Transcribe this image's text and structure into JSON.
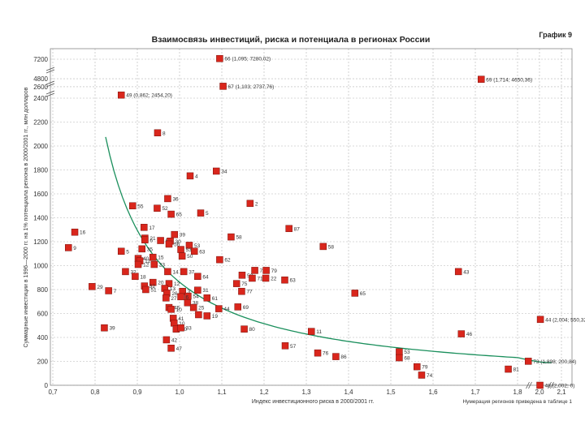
{
  "chart_data": {
    "type": "scatter",
    "title": "Взаимосвязь инвестиций, риска и потенциала в регионах России",
    "graph_label": "График 9",
    "xlabel": "Индекс инвестиционного риска в 2000/2001 гг.",
    "ylabel": "Суммарные инвестиции в 1996—2000 гг. на 1% потенциала региона в 2000/2001 гг., млн долларов",
    "note": "Нумерация регионов приведена в таблице 1",
    "x_ticks": [
      "0,7",
      "0,8",
      "0,9",
      "1,0",
      "1,1",
      "1,2",
      "1,3",
      "1,4",
      "1,5",
      "1,6",
      "1,7",
      "1,8",
      "2,0",
      "2,1"
    ],
    "y_ticks": [
      0,
      200,
      400,
      600,
      800,
      1000,
      1200,
      1400,
      1600,
      1800,
      2000,
      2200,
      2400,
      2600,
      4800,
      7200
    ],
    "grid": true,
    "trend": "hyperbolic",
    "points": [
      {
        "label": "66 (1,095; 7280,02)",
        "x": 1.095,
        "y": 7280.02
      },
      {
        "label": "69 (1,714; 4650,36)",
        "x": 1.714,
        "y": 4650.36
      },
      {
        "label": "67 (1,103; 2737,76)",
        "x": 1.103,
        "y": 2737.76
      },
      {
        "label": "49 (0,862; 2454,20)",
        "x": 0.862,
        "y": 2454.2
      },
      {
        "label": "8",
        "x": 0.948,
        "y": 2110
      },
      {
        "label": "34",
        "x": 1.087,
        "y": 1790
      },
      {
        "label": "4",
        "x": 1.025,
        "y": 1750
      },
      {
        "label": "36",
        "x": 0.972,
        "y": 1560
      },
      {
        "label": "2",
        "x": 1.167,
        "y": 1520
      },
      {
        "label": "55",
        "x": 0.889,
        "y": 1500
      },
      {
        "label": "52",
        "x": 0.947,
        "y": 1480
      },
      {
        "label": "65",
        "x": 0.98,
        "y": 1430
      },
      {
        "label": "5",
        "x": 1.05,
        "y": 1440
      },
      {
        "label": "16",
        "x": 0.752,
        "y": 1280
      },
      {
        "label": "17",
        "x": 0.916,
        "y": 1320
      },
      {
        "label": "87",
        "x": 1.259,
        "y": 1310
      },
      {
        "label": "9",
        "x": 0.737,
        "y": 1150
      },
      {
        "label": "21",
        "x": 0.918,
        "y": 1230
      },
      {
        "label": "39",
        "x": 0.988,
        "y": 1260
      },
      {
        "label": "58",
        "x": 1.122,
        "y": 1240
      },
      {
        "label": "6",
        "x": 0.918,
        "y": 1215
      },
      {
        "label": "59",
        "x": 0.955,
        "y": 1210
      },
      {
        "label": "30",
        "x": 0.978,
        "y": 1205
      },
      {
        "label": "56",
        "x": 0.975,
        "y": 1180
      },
      {
        "label": "5",
        "x": 0.862,
        "y": 1120
      },
      {
        "label": "35",
        "x": 0.911,
        "y": 1140
      },
      {
        "label": "53",
        "x": 1.023,
        "y": 1170
      },
      {
        "label": "58",
        "x": 1.34,
        "y": 1160
      },
      {
        "label": "53",
        "x": 1.003,
        "y": 1135
      },
      {
        "label": "63",
        "x": 1.035,
        "y": 1120
      },
      {
        "label": "40",
        "x": 0.902,
        "y": 1060
      },
      {
        "label": "15",
        "x": 0.937,
        "y": 1070
      },
      {
        "label": "11",
        "x": 0.906,
        "y": 1040
      },
      {
        "label": "50",
        "x": 1.006,
        "y": 1080
      },
      {
        "label": "12",
        "x": 0.902,
        "y": 1010
      },
      {
        "label": "23",
        "x": 0.94,
        "y": 1010
      },
      {
        "label": "62",
        "x": 1.095,
        "y": 1050
      },
      {
        "label": "72",
        "x": 1.178,
        "y": 960
      },
      {
        "label": "32",
        "x": 0.872,
        "y": 950
      },
      {
        "label": "14",
        "x": 0.972,
        "y": 950
      },
      {
        "label": "37",
        "x": 1.01,
        "y": 950
      },
      {
        "label": "52",
        "x": 1.148,
        "y": 920
      },
      {
        "label": "79",
        "x": 1.205,
        "y": 960
      },
      {
        "label": "18",
        "x": 0.895,
        "y": 910
      },
      {
        "label": "64",
        "x": 1.043,
        "y": 910
      },
      {
        "label": "71",
        "x": 1.172,
        "y": 895
      },
      {
        "label": "22",
        "x": 1.204,
        "y": 895
      },
      {
        "label": "63",
        "x": 1.249,
        "y": 880
      },
      {
        "label": "43",
        "x": 1.66,
        "y": 950
      },
      {
        "label": "20",
        "x": 0.937,
        "y": 860
      },
      {
        "label": "12",
        "x": 0.975,
        "y": 850
      },
      {
        "label": "75",
        "x": 1.135,
        "y": 850
      },
      {
        "label": "29",
        "x": 0.793,
        "y": 825
      },
      {
        "label": "7",
        "x": 0.832,
        "y": 790
      },
      {
        "label": "32",
        "x": 0.917,
        "y": 830
      },
      {
        "label": "51",
        "x": 0.92,
        "y": 800
      },
      {
        "label": "13",
        "x": 0.965,
        "y": 810
      },
      {
        "label": "31",
        "x": 1.043,
        "y": 795
      },
      {
        "label": "77",
        "x": 1.147,
        "y": 785
      },
      {
        "label": "3",
        "x": 1.007,
        "y": 785
      },
      {
        "label": "54",
        "x": 1.02,
        "y": 745
      },
      {
        "label": "26",
        "x": 0.97,
        "y": 770
      },
      {
        "label": "27",
        "x": 0.968,
        "y": 730
      },
      {
        "label": "6",
        "x": 1.003,
        "y": 740
      },
      {
        "label": "61",
        "x": 1.065,
        "y": 730
      },
      {
        "label": "65",
        "x": 1.415,
        "y": 770
      },
      {
        "label": "38",
        "x": 1.019,
        "y": 690
      },
      {
        "label": "45",
        "x": 0.975,
        "y": 650
      },
      {
        "label": "25",
        "x": 1.033,
        "y": 650
      },
      {
        "label": "10",
        "x": 0.98,
        "y": 635
      },
      {
        "label": "44",
        "x": 1.093,
        "y": 640
      },
      {
        "label": "69",
        "x": 1.138,
        "y": 655
      },
      {
        "label": "28",
        "x": 1.045,
        "y": 590
      },
      {
        "label": "19",
        "x": 1.065,
        "y": 580
      },
      {
        "label": "41",
        "x": 0.985,
        "y": 560
      },
      {
        "label": "10",
        "x": 0.987,
        "y": 520
      },
      {
        "label": "44 (2,004; 550,32)",
        "x": 2.004,
        "y": 550.32
      },
      {
        "label": "39",
        "x": 0.822,
        "y": 480
      },
      {
        "label": "60",
        "x": 0.992,
        "y": 470
      },
      {
        "label": "33",
        "x": 1.003,
        "y": 480
      },
      {
        "label": "80",
        "x": 1.153,
        "y": 470
      },
      {
        "label": "46",
        "x": 1.667,
        "y": 430
      },
      {
        "label": "11",
        "x": 1.312,
        "y": 450
      },
      {
        "label": "42",
        "x": 0.969,
        "y": 380
      },
      {
        "label": "57",
        "x": 1.25,
        "y": 330
      },
      {
        "label": "47",
        "x": 0.98,
        "y": 310
      },
      {
        "label": "76",
        "x": 1.327,
        "y": 270
      },
      {
        "label": "86",
        "x": 1.37,
        "y": 240
      },
      {
        "label": "53",
        "x": 1.52,
        "y": 280
      },
      {
        "label": "68",
        "x": 1.52,
        "y": 230
      },
      {
        "label": "73 (1,898; 200,84)",
        "x": 1.898,
        "y": 200.84
      },
      {
        "label": "79",
        "x": 1.562,
        "y": 155
      },
      {
        "label": "81",
        "x": 1.778,
        "y": 135
      },
      {
        "label": "74",
        "x": 1.573,
        "y": 85
      },
      {
        "label": "48 (2,002; 0)",
        "x": 2.002,
        "y": 0
      }
    ]
  }
}
